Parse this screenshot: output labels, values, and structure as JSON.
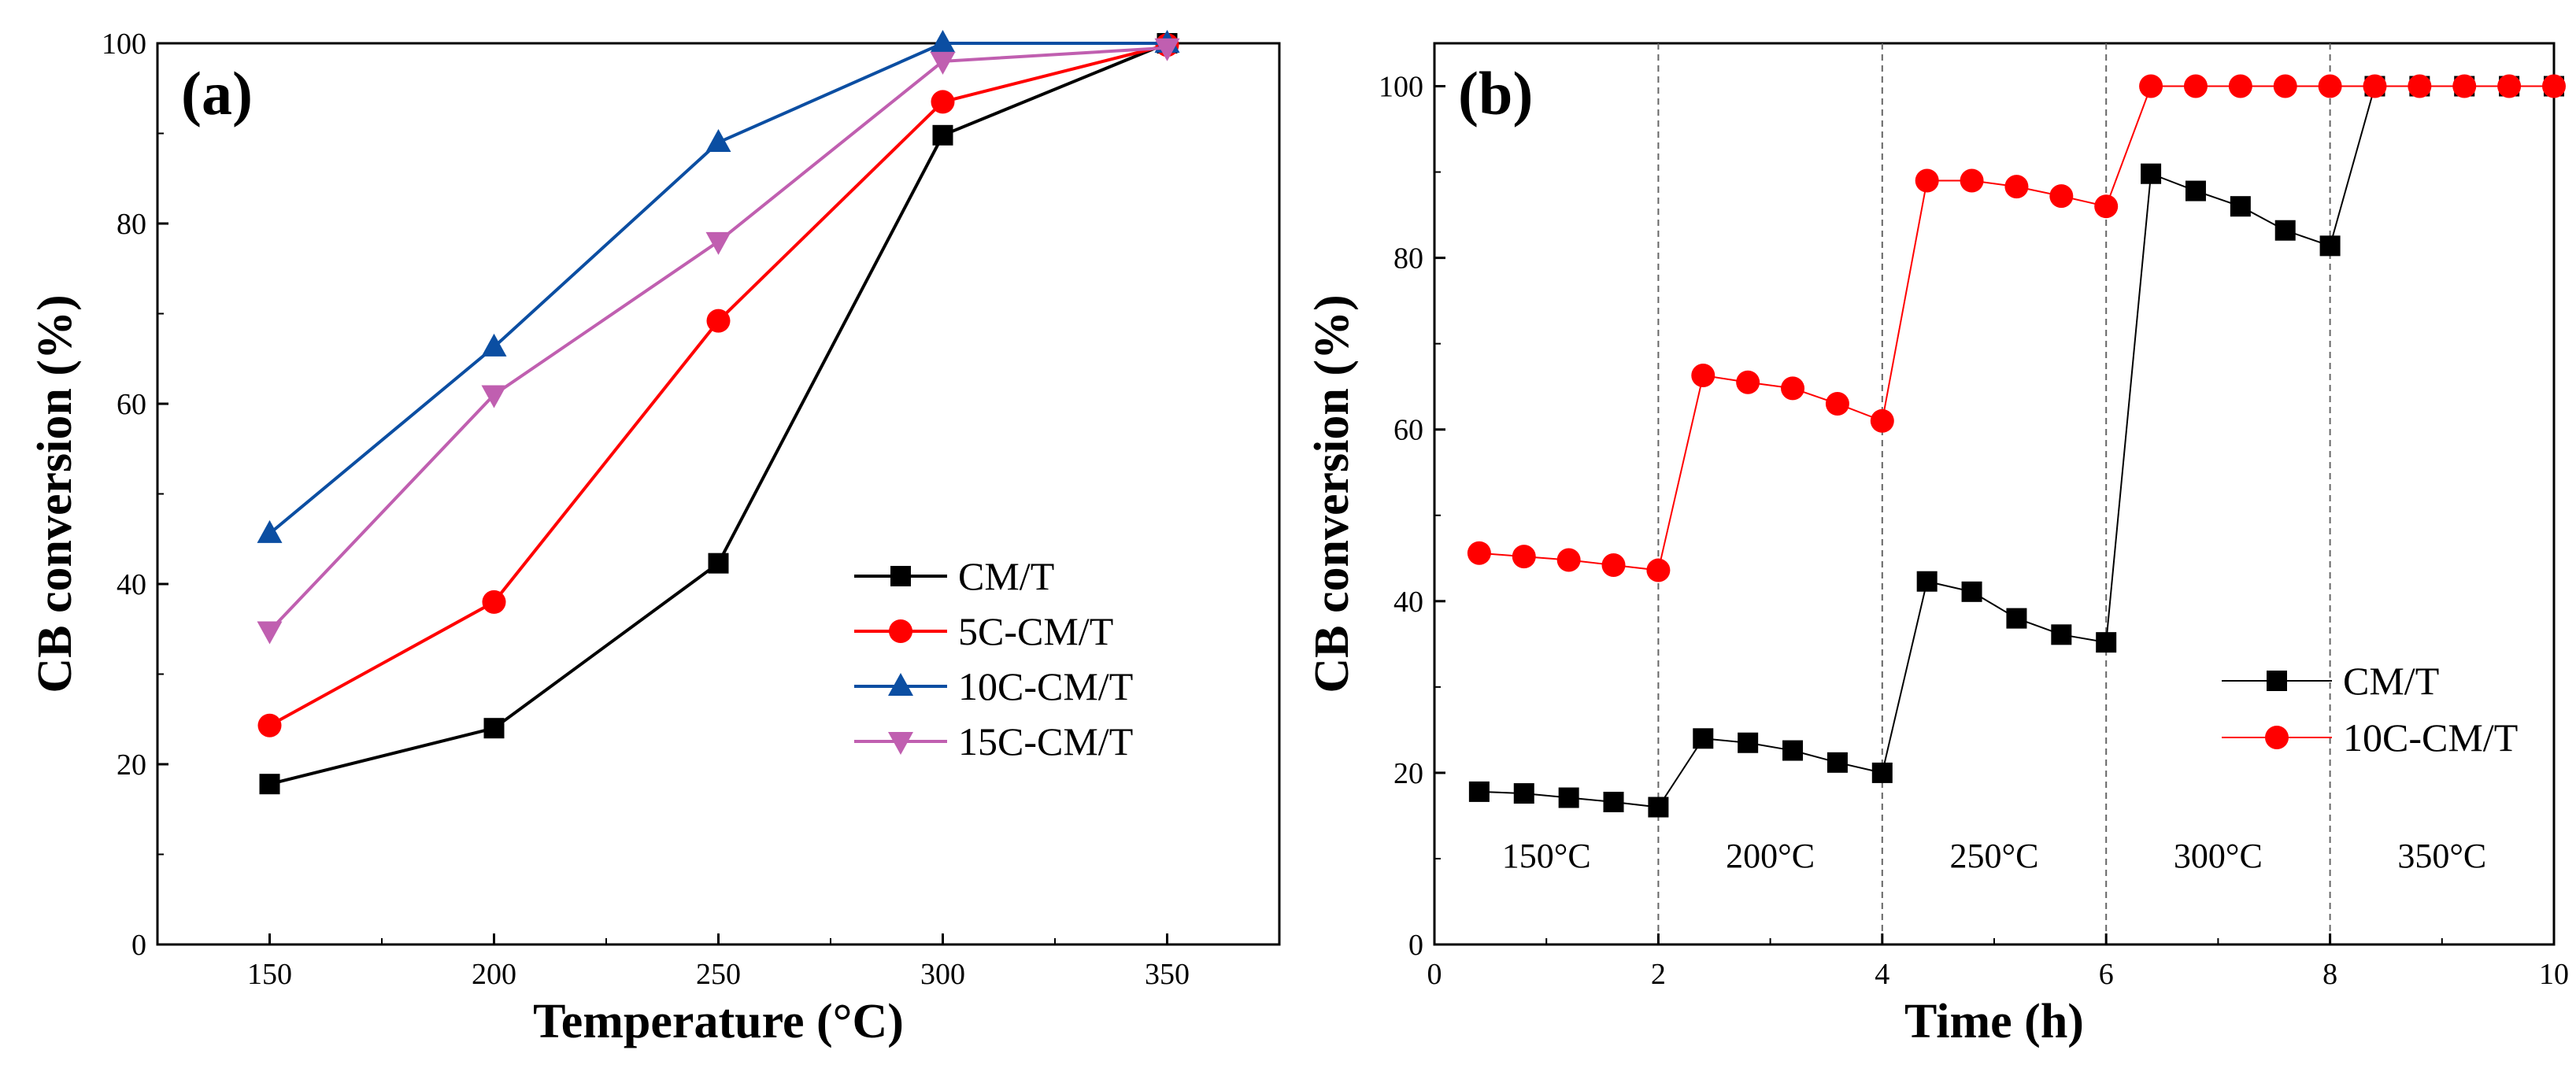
{
  "chart_data": [
    {
      "type": "line",
      "panel_label": "(a)",
      "xlabel": "Temperature (°C)",
      "ylabel": "CB conversion (%)",
      "xlim": [
        125,
        375
      ],
      "ylim": [
        0,
        100
      ],
      "xticks": [
        150,
        200,
        250,
        300,
        350
      ],
      "xtick_labels": [
        "150",
        "200",
        "250",
        "300",
        "350"
      ],
      "yticks": [
        0,
        20,
        40,
        60,
        80,
        100
      ],
      "ytick_labels": [
        "0",
        "20",
        "40",
        "60",
        "80",
        "100"
      ],
      "legend_position": "lower-right",
      "x": [
        150,
        200,
        250,
        300,
        350
      ],
      "series": [
        {
          "name": "CM/T",
          "color": "#000000",
          "marker": "square",
          "values": [
            17.8,
            24.0,
            42.3,
            89.8,
            100
          ]
        },
        {
          "name": "5C-CM/T",
          "color": "#ff0000",
          "marker": "circle",
          "values": [
            24.3,
            38.0,
            69.2,
            93.5,
            99.8
          ]
        },
        {
          "name": "10C-CM/T",
          "color": "#0b4ea2",
          "marker": "triangle-up",
          "values": [
            45.6,
            66.3,
            89.0,
            100,
            100
          ]
        },
        {
          "name": "15C-CM/T",
          "color": "#c05fb0",
          "marker": "triangle-down",
          "values": [
            34.8,
            61.0,
            78.0,
            98.0,
            99.5
          ]
        }
      ]
    },
    {
      "type": "line",
      "panel_label": "(b)",
      "xlabel": "Time (h)",
      "ylabel": "CB conversion (%)",
      "xlim": [
        0,
        10
      ],
      "ylim": [
        0,
        105
      ],
      "xticks": [
        0,
        2,
        4,
        6,
        8,
        10
      ],
      "xtick_labels": [
        "0",
        "2",
        "4",
        "6",
        "8",
        "10"
      ],
      "yticks": [
        0,
        20,
        40,
        60,
        80,
        100
      ],
      "ytick_labels": [
        "0",
        "20",
        "40",
        "60",
        "80",
        "100"
      ],
      "legend_position": "right",
      "dividers": [
        2,
        4,
        6,
        8
      ],
      "segment_labels": [
        {
          "text": "150°C",
          "x": 1.0,
          "y": 9
        },
        {
          "text": "200°C",
          "x": 3.0,
          "y": 9
        },
        {
          "text": "250°C",
          "x": 5.0,
          "y": 9
        },
        {
          "text": "300°C",
          "x": 7.0,
          "y": 9
        },
        {
          "text": "350°C",
          "x": 9.0,
          "y": 9
        }
      ],
      "series": [
        {
          "name": "CM/T",
          "color": "#000000",
          "marker": "square",
          "x": [
            0.4,
            0.8,
            1.2,
            1.6,
            2.0,
            2.4,
            2.8,
            3.2,
            3.6,
            4.0,
            4.4,
            4.8,
            5.2,
            5.6,
            6.0,
            6.4,
            6.8,
            7.2,
            7.6,
            8.0,
            8.4,
            8.8,
            9.2,
            9.6,
            10.0
          ],
          "values": [
            17.8,
            17.6,
            17.1,
            16.6,
            16.0,
            24.0,
            23.5,
            22.6,
            21.2,
            20.0,
            42.3,
            41.1,
            38.0,
            36.1,
            35.2,
            89.8,
            87.8,
            86.0,
            83.2,
            81.4,
            100,
            100,
            100,
            100,
            100
          ]
        },
        {
          "name": "10C-CM/T",
          "color": "#ff0000",
          "marker": "circle",
          "x": [
            0.4,
            0.8,
            1.2,
            1.6,
            2.0,
            2.4,
            2.8,
            3.2,
            3.6,
            4.0,
            4.4,
            4.8,
            5.2,
            5.6,
            6.0,
            6.4,
            6.8,
            7.2,
            7.6,
            8.0,
            8.4,
            8.8,
            9.2,
            9.6,
            10.0
          ],
          "values": [
            45.6,
            45.2,
            44.8,
            44.2,
            43.6,
            66.3,
            65.5,
            64.8,
            63.0,
            61.0,
            89.0,
            89.0,
            88.3,
            87.2,
            86.0,
            100,
            100,
            100,
            100,
            100,
            100,
            100,
            100,
            100,
            100
          ]
        }
      ]
    }
  ]
}
